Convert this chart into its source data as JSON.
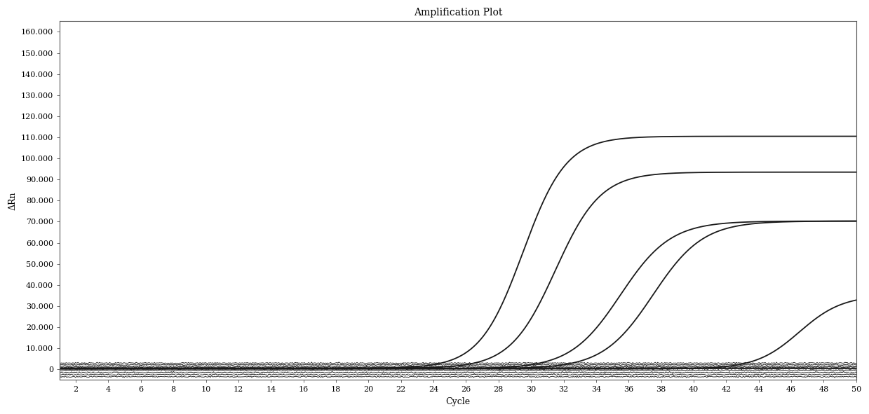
{
  "title": "Amplification Plot",
  "xlabel": "Cycle",
  "ylabel": "ΔRn",
  "xlim": [
    1,
    50
  ],
  "ylim": [
    -5000,
    165000
  ],
  "yticks": [
    0,
    10000,
    20000,
    30000,
    40000,
    50000,
    60000,
    70000,
    80000,
    90000,
    100000,
    110000,
    120000,
    130000,
    140000,
    150000,
    160000
  ],
  "xticks": [
    2,
    4,
    6,
    8,
    10,
    12,
    14,
    16,
    18,
    20,
    22,
    24,
    26,
    28,
    30,
    32,
    34,
    36,
    38,
    40,
    42,
    44,
    46,
    48,
    50
  ],
  "background_color": "#ffffff",
  "line_color": "#1a1a1a",
  "curves": [
    {
      "midpoint": 29.5,
      "plateau": 110000,
      "steepness": 0.75,
      "baseline": 500
    },
    {
      "midpoint": 31.5,
      "plateau": 93000,
      "steepness": 0.72,
      "baseline": 500
    },
    {
      "midpoint": 35.5,
      "plateau": 70000,
      "steepness": 0.65,
      "baseline": 300
    },
    {
      "midpoint": 37.5,
      "plateau": 70000,
      "steepness": 0.65,
      "baseline": 300
    },
    {
      "midpoint": 46.5,
      "plateau": 35000,
      "steepness": 0.75,
      "baseline": 200
    }
  ],
  "flat_lines_y": [
    3000,
    2200,
    1500,
    1000,
    600,
    200,
    -500,
    -1500,
    -2500,
    -3500
  ],
  "title_fontsize": 10,
  "axis_label_fontsize": 9,
  "tick_fontsize": 8
}
